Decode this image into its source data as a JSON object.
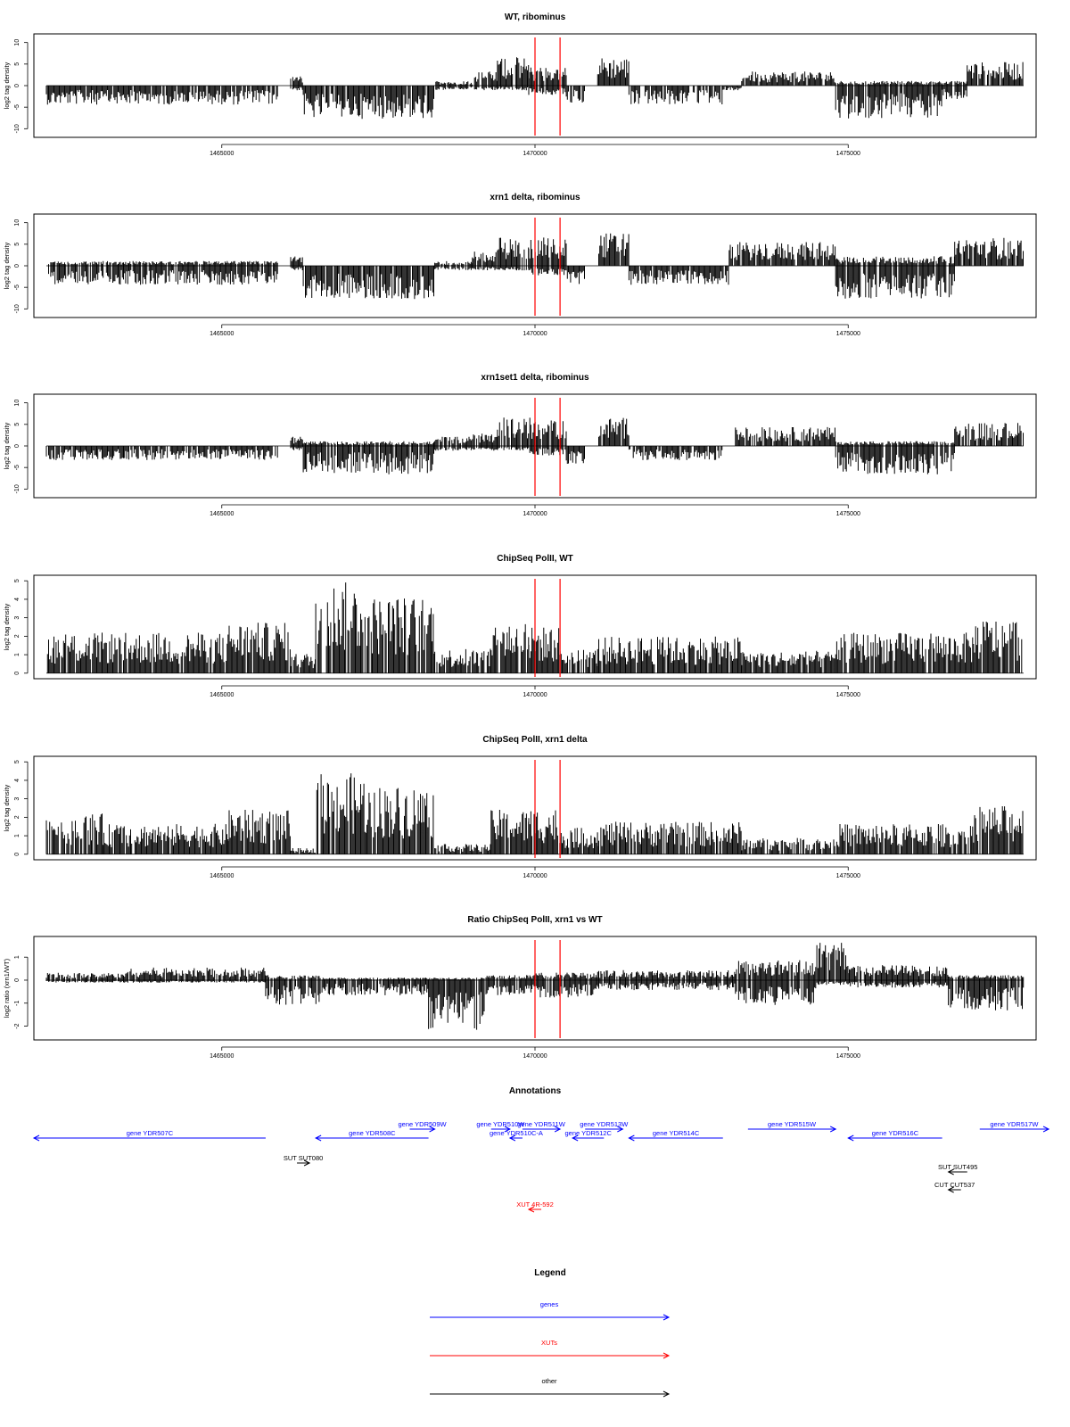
{
  "chart_data": {
    "type": "genome-track",
    "x_ticks": [
      1465000,
      1470000,
      1475000
    ],
    "xlim": [
      1462000,
      1478000
    ],
    "marker_positions": [
      1470000,
      1470400
    ],
    "marker_color": "#ff0000",
    "panels": [
      {
        "title": "WT, ribominus",
        "ylabel": "log2 tag density",
        "ylim": [
          -12,
          12
        ],
        "yticks": [
          10,
          5,
          0,
          -5,
          -10
        ],
        "regions": [
          {
            "start": 1462200,
            "end": 1465900,
            "top": 0,
            "bottom": -4
          },
          {
            "start": 1466100,
            "end": 1466300,
            "top": 2,
            "bottom": -1
          },
          {
            "start": 1466300,
            "end": 1468400,
            "top": 0,
            "bottom": -7
          },
          {
            "start": 1468400,
            "end": 1469000,
            "top": 1,
            "bottom": -1
          },
          {
            "start": 1469000,
            "end": 1469400,
            "top": 3,
            "bottom": -1
          },
          {
            "start": 1469400,
            "end": 1469900,
            "top": 6,
            "bottom": -1
          },
          {
            "start": 1469900,
            "end": 1470500,
            "top": 4,
            "bottom": -2
          },
          {
            "start": 1470500,
            "end": 1470800,
            "top": 0,
            "bottom": -4
          },
          {
            "start": 1471000,
            "end": 1471500,
            "top": 6,
            "bottom": 0
          },
          {
            "start": 1471500,
            "end": 1473000,
            "top": 0,
            "bottom": -4
          },
          {
            "start": 1473000,
            "end": 1473300,
            "top": 0,
            "bottom": -1
          },
          {
            "start": 1473300,
            "end": 1474800,
            "top": 3,
            "bottom": 0
          },
          {
            "start": 1474800,
            "end": 1476500,
            "top": 1,
            "bottom": -7
          },
          {
            "start": 1476500,
            "end": 1476900,
            "top": 1,
            "bottom": -3
          },
          {
            "start": 1476900,
            "end": 1477800,
            "top": 5,
            "bottom": 0
          }
        ]
      },
      {
        "title": "xrn1 delta, ribominus",
        "ylabel": "log2 tag density",
        "ylim": [
          -12,
          12
        ],
        "yticks": [
          10,
          5,
          0,
          -5,
          -10
        ],
        "regions": [
          {
            "start": 1462200,
            "end": 1465900,
            "top": 1,
            "bottom": -4
          },
          {
            "start": 1466100,
            "end": 1466300,
            "top": 2,
            "bottom": -1
          },
          {
            "start": 1466300,
            "end": 1468400,
            "top": 0,
            "bottom": -7
          },
          {
            "start": 1468400,
            "end": 1469000,
            "top": 1,
            "bottom": -1
          },
          {
            "start": 1469000,
            "end": 1469400,
            "top": 3,
            "bottom": -1
          },
          {
            "start": 1469400,
            "end": 1469900,
            "top": 6,
            "bottom": -1
          },
          {
            "start": 1469900,
            "end": 1470500,
            "top": 6,
            "bottom": -2
          },
          {
            "start": 1470500,
            "end": 1470800,
            "top": 0,
            "bottom": -4
          },
          {
            "start": 1471000,
            "end": 1471500,
            "top": 7,
            "bottom": 0
          },
          {
            "start": 1471500,
            "end": 1473100,
            "top": 0,
            "bottom": -4
          },
          {
            "start": 1473100,
            "end": 1474800,
            "top": 5,
            "bottom": 0
          },
          {
            "start": 1474800,
            "end": 1476700,
            "top": 2,
            "bottom": -7
          },
          {
            "start": 1476700,
            "end": 1477800,
            "top": 6,
            "bottom": 0
          }
        ]
      },
      {
        "title": "xrn1set1 delta, ribominus",
        "ylabel": "log2 tag density",
        "ylim": [
          -12,
          12
        ],
        "yticks": [
          10,
          5,
          0,
          -5,
          -10
        ],
        "regions": [
          {
            "start": 1462200,
            "end": 1465900,
            "top": 0,
            "bottom": -3
          },
          {
            "start": 1466100,
            "end": 1466300,
            "top": 2,
            "bottom": -1
          },
          {
            "start": 1466300,
            "end": 1468400,
            "top": 1,
            "bottom": -6
          },
          {
            "start": 1468400,
            "end": 1469000,
            "top": 2,
            "bottom": -1
          },
          {
            "start": 1469000,
            "end": 1469400,
            "top": 3,
            "bottom": -1
          },
          {
            "start": 1469400,
            "end": 1469900,
            "top": 6,
            "bottom": -1
          },
          {
            "start": 1469900,
            "end": 1470500,
            "top": 6,
            "bottom": -2
          },
          {
            "start": 1470500,
            "end": 1470800,
            "top": 0,
            "bottom": -4
          },
          {
            "start": 1471000,
            "end": 1471500,
            "top": 6,
            "bottom": 0
          },
          {
            "start": 1471500,
            "end": 1473000,
            "top": 0,
            "bottom": -3
          },
          {
            "start": 1473200,
            "end": 1474800,
            "top": 4,
            "bottom": 0
          },
          {
            "start": 1474800,
            "end": 1476700,
            "top": 1,
            "bottom": -6
          },
          {
            "start": 1476700,
            "end": 1477800,
            "top": 5,
            "bottom": 0
          }
        ]
      },
      {
        "title": "ChipSeq PolII, WT",
        "ylabel": "log2 tag density",
        "ylim": [
          -0.3,
          5.3
        ],
        "yticks": [
          5,
          4,
          3,
          2,
          1,
          0
        ],
        "regions": [
          {
            "start": 1462200,
            "end": 1465100,
            "top": 2,
            "bottom": 0
          },
          {
            "start": 1465100,
            "end": 1466100,
            "top": 2.5,
            "bottom": 0
          },
          {
            "start": 1466100,
            "end": 1466500,
            "top": 1,
            "bottom": 0
          },
          {
            "start": 1466500,
            "end": 1467300,
            "top": 4.5,
            "bottom": 0
          },
          {
            "start": 1467300,
            "end": 1468400,
            "top": 3.8,
            "bottom": 0
          },
          {
            "start": 1468400,
            "end": 1469300,
            "top": 1.2,
            "bottom": 0
          },
          {
            "start": 1469300,
            "end": 1469900,
            "top": 2.6,
            "bottom": 0
          },
          {
            "start": 1469900,
            "end": 1470400,
            "top": 2.3,
            "bottom": 0
          },
          {
            "start": 1470400,
            "end": 1471000,
            "top": 1.2,
            "bottom": 0
          },
          {
            "start": 1471000,
            "end": 1473300,
            "top": 1.8,
            "bottom": 0
          },
          {
            "start": 1473300,
            "end": 1474800,
            "top": 1.1,
            "bottom": 0
          },
          {
            "start": 1474800,
            "end": 1477000,
            "top": 2,
            "bottom": 0
          },
          {
            "start": 1477000,
            "end": 1477800,
            "top": 2.7,
            "bottom": 0
          }
        ]
      },
      {
        "title": "ChipSeq PolII, xrn1 delta",
        "ylabel": "log2 tag density",
        "ylim": [
          -0.3,
          5.3
        ],
        "yticks": [
          5,
          4,
          3,
          2,
          1,
          0
        ],
        "regions": [
          {
            "start": 1462200,
            "end": 1463100,
            "top": 2,
            "bottom": 0
          },
          {
            "start": 1463100,
            "end": 1465100,
            "top": 1.5,
            "bottom": 0
          },
          {
            "start": 1465100,
            "end": 1466100,
            "top": 2.2,
            "bottom": 0
          },
          {
            "start": 1466100,
            "end": 1466500,
            "top": 0.3,
            "bottom": 0
          },
          {
            "start": 1466500,
            "end": 1467300,
            "top": 4,
            "bottom": 0
          },
          {
            "start": 1467300,
            "end": 1468400,
            "top": 3.4,
            "bottom": 0
          },
          {
            "start": 1468400,
            "end": 1469300,
            "top": 0.5,
            "bottom": 0
          },
          {
            "start": 1469300,
            "end": 1469900,
            "top": 2.2,
            "bottom": 0
          },
          {
            "start": 1469900,
            "end": 1470400,
            "top": 2.3,
            "bottom": 0
          },
          {
            "start": 1470400,
            "end": 1471000,
            "top": 1.3,
            "bottom": 0
          },
          {
            "start": 1471000,
            "end": 1473300,
            "top": 1.6,
            "bottom": 0
          },
          {
            "start": 1473300,
            "end": 1474800,
            "top": 0.8,
            "bottom": 0
          },
          {
            "start": 1474800,
            "end": 1477000,
            "top": 1.5,
            "bottom": 0
          },
          {
            "start": 1477000,
            "end": 1477800,
            "top": 2.4,
            "bottom": 0
          }
        ]
      },
      {
        "title": "Ratio ChipSeq PolII, xrn1 vs WT",
        "ylabel": "log2 ratio (xrn1/WT)",
        "ylim": [
          -2.6,
          1.9
        ],
        "yticks": [
          1,
          0,
          -1,
          -2
        ],
        "regions": [
          {
            "start": 1462200,
            "end": 1463500,
            "top": 0.3,
            "bottom": -0.1
          },
          {
            "start": 1463500,
            "end": 1465700,
            "top": 0.5,
            "bottom": -0.1
          },
          {
            "start": 1465700,
            "end": 1466600,
            "top": 0.2,
            "bottom": -1
          },
          {
            "start": 1466600,
            "end": 1468300,
            "top": 0.1,
            "bottom": -0.6
          },
          {
            "start": 1468300,
            "end": 1469200,
            "top": 0.1,
            "bottom": -2
          },
          {
            "start": 1469200,
            "end": 1470000,
            "top": 0.2,
            "bottom": -0.6
          },
          {
            "start": 1470000,
            "end": 1471000,
            "top": 0.3,
            "bottom": -0.7
          },
          {
            "start": 1471000,
            "end": 1473200,
            "top": 0.4,
            "bottom": -0.4
          },
          {
            "start": 1473200,
            "end": 1474500,
            "top": 0.8,
            "bottom": -1
          },
          {
            "start": 1474500,
            "end": 1475000,
            "top": 1.5,
            "bottom": -0.2
          },
          {
            "start": 1475000,
            "end": 1476600,
            "top": 0.6,
            "bottom": -0.3
          },
          {
            "start": 1476600,
            "end": 1477800,
            "top": 0.2,
            "bottom": -1.2
          }
        ]
      }
    ],
    "annotations": {
      "title": "Annotations",
      "features": [
        {
          "label": "gene YDR507C",
          "start": 1462000,
          "end": 1465700,
          "strand": "-",
          "row": 1,
          "class": "gene"
        },
        {
          "label": "gene YDR508C",
          "start": 1466500,
          "end": 1468300,
          "strand": "-",
          "row": 1,
          "class": "gene"
        },
        {
          "label": "gene YDR509W",
          "start": 1468000,
          "end": 1468400,
          "strand": "+",
          "row": 0,
          "class": "gene"
        },
        {
          "label": "gene YDR510W",
          "start": 1469300,
          "end": 1469600,
          "strand": "+",
          "row": 0,
          "class": "gene"
        },
        {
          "label": "gene YDR511W",
          "start": 1469800,
          "end": 1470400,
          "strand": "+",
          "row": 0,
          "class": "gene"
        },
        {
          "label": "gene YDR510C-A",
          "start": 1469600,
          "end": 1469800,
          "strand": "-",
          "row": 1,
          "class": "gene"
        },
        {
          "label": "gene YDR512C",
          "start": 1470600,
          "end": 1471100,
          "strand": "-",
          "row": 1,
          "class": "gene"
        },
        {
          "label": "gene YDR513W",
          "start": 1470800,
          "end": 1471400,
          "strand": "+",
          "row": 0,
          "class": "gene"
        },
        {
          "label": "gene YDR514C",
          "start": 1471500,
          "end": 1473000,
          "strand": "-",
          "row": 1,
          "class": "gene"
        },
        {
          "label": "gene YDR515W",
          "start": 1473400,
          "end": 1474800,
          "strand": "+",
          "row": 0,
          "class": "gene"
        },
        {
          "label": "gene YDR516C",
          "start": 1475000,
          "end": 1476500,
          "strand": "-",
          "row": 1,
          "class": "gene"
        },
        {
          "label": "gene YDR517W",
          "start": 1477100,
          "end": 1478200,
          "strand": "+",
          "row": 0,
          "class": "gene"
        },
        {
          "label": "SUT SUT080",
          "start": 1466200,
          "end": 1466400,
          "strand": "+",
          "row": 2,
          "class": "other"
        },
        {
          "label": "SUT SUT495",
          "start": 1476600,
          "end": 1476900,
          "strand": "-",
          "row": 3,
          "class": "other"
        },
        {
          "label": "CUT CUT537",
          "start": 1476600,
          "end": 1476800,
          "strand": "-",
          "row": 4,
          "class": "other"
        },
        {
          "label": "XUT 4R-592",
          "start": 1469900,
          "end": 1470100,
          "strand": "-",
          "row": 5,
          "class": "xut"
        }
      ]
    },
    "legend": {
      "title": "Legend",
      "items": [
        {
          "label": "genes",
          "color": "#0000ff"
        },
        {
          "label": "XUTs",
          "color": "#ff0000"
        },
        {
          "label": "other",
          "color": "#000000"
        }
      ]
    },
    "colors": {
      "gene": "#0000ff",
      "xut": "#ff0000",
      "other": "#000000"
    }
  }
}
